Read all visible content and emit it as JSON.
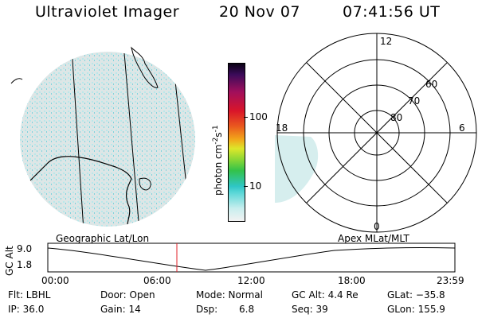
{
  "header": {
    "instrument": "Ultraviolet Imager",
    "date": "20 Nov 07",
    "time": "07:41:56 UT"
  },
  "colorbar": {
    "unit_prefix": "photon cm",
    "unit_sup": "-2",
    "unit_s": "s",
    "unit_sup2": "-1",
    "ticks": [
      "100",
      "10"
    ]
  },
  "polar_plot": {
    "lat_rings": [
      "80",
      "70",
      "60"
    ],
    "mlt_labels": {
      "top": "12",
      "left": "18",
      "right": "6",
      "bottom": "0"
    }
  },
  "alt_panel": {
    "left_title": "Geographic Lat/Lon",
    "right_title": "Apex MLat/MLT",
    "axis_label": "GC Alt",
    "y_max": "9.0",
    "y_min": "1.8",
    "x_ticks": [
      "00:00",
      "06:00",
      "12:00",
      "18:00",
      "23:59"
    ]
  },
  "footer": {
    "flt": "Flt: LBHL",
    "door": "Door: Open",
    "mode": "Mode: Normal",
    "gc_alt": "GC Alt: 4.4 Re",
    "glat": "GLat: −35.8",
    "ip": "IP: 36.0",
    "gain": "Gain: 14",
    "dsp_label": "Dsp:",
    "dsp_val": "6.8",
    "seq": "Seq: 39",
    "glon": "GLon: 155.9"
  },
  "colors": {
    "emission": "#9ee0e6",
    "marker": "#e0202a"
  }
}
